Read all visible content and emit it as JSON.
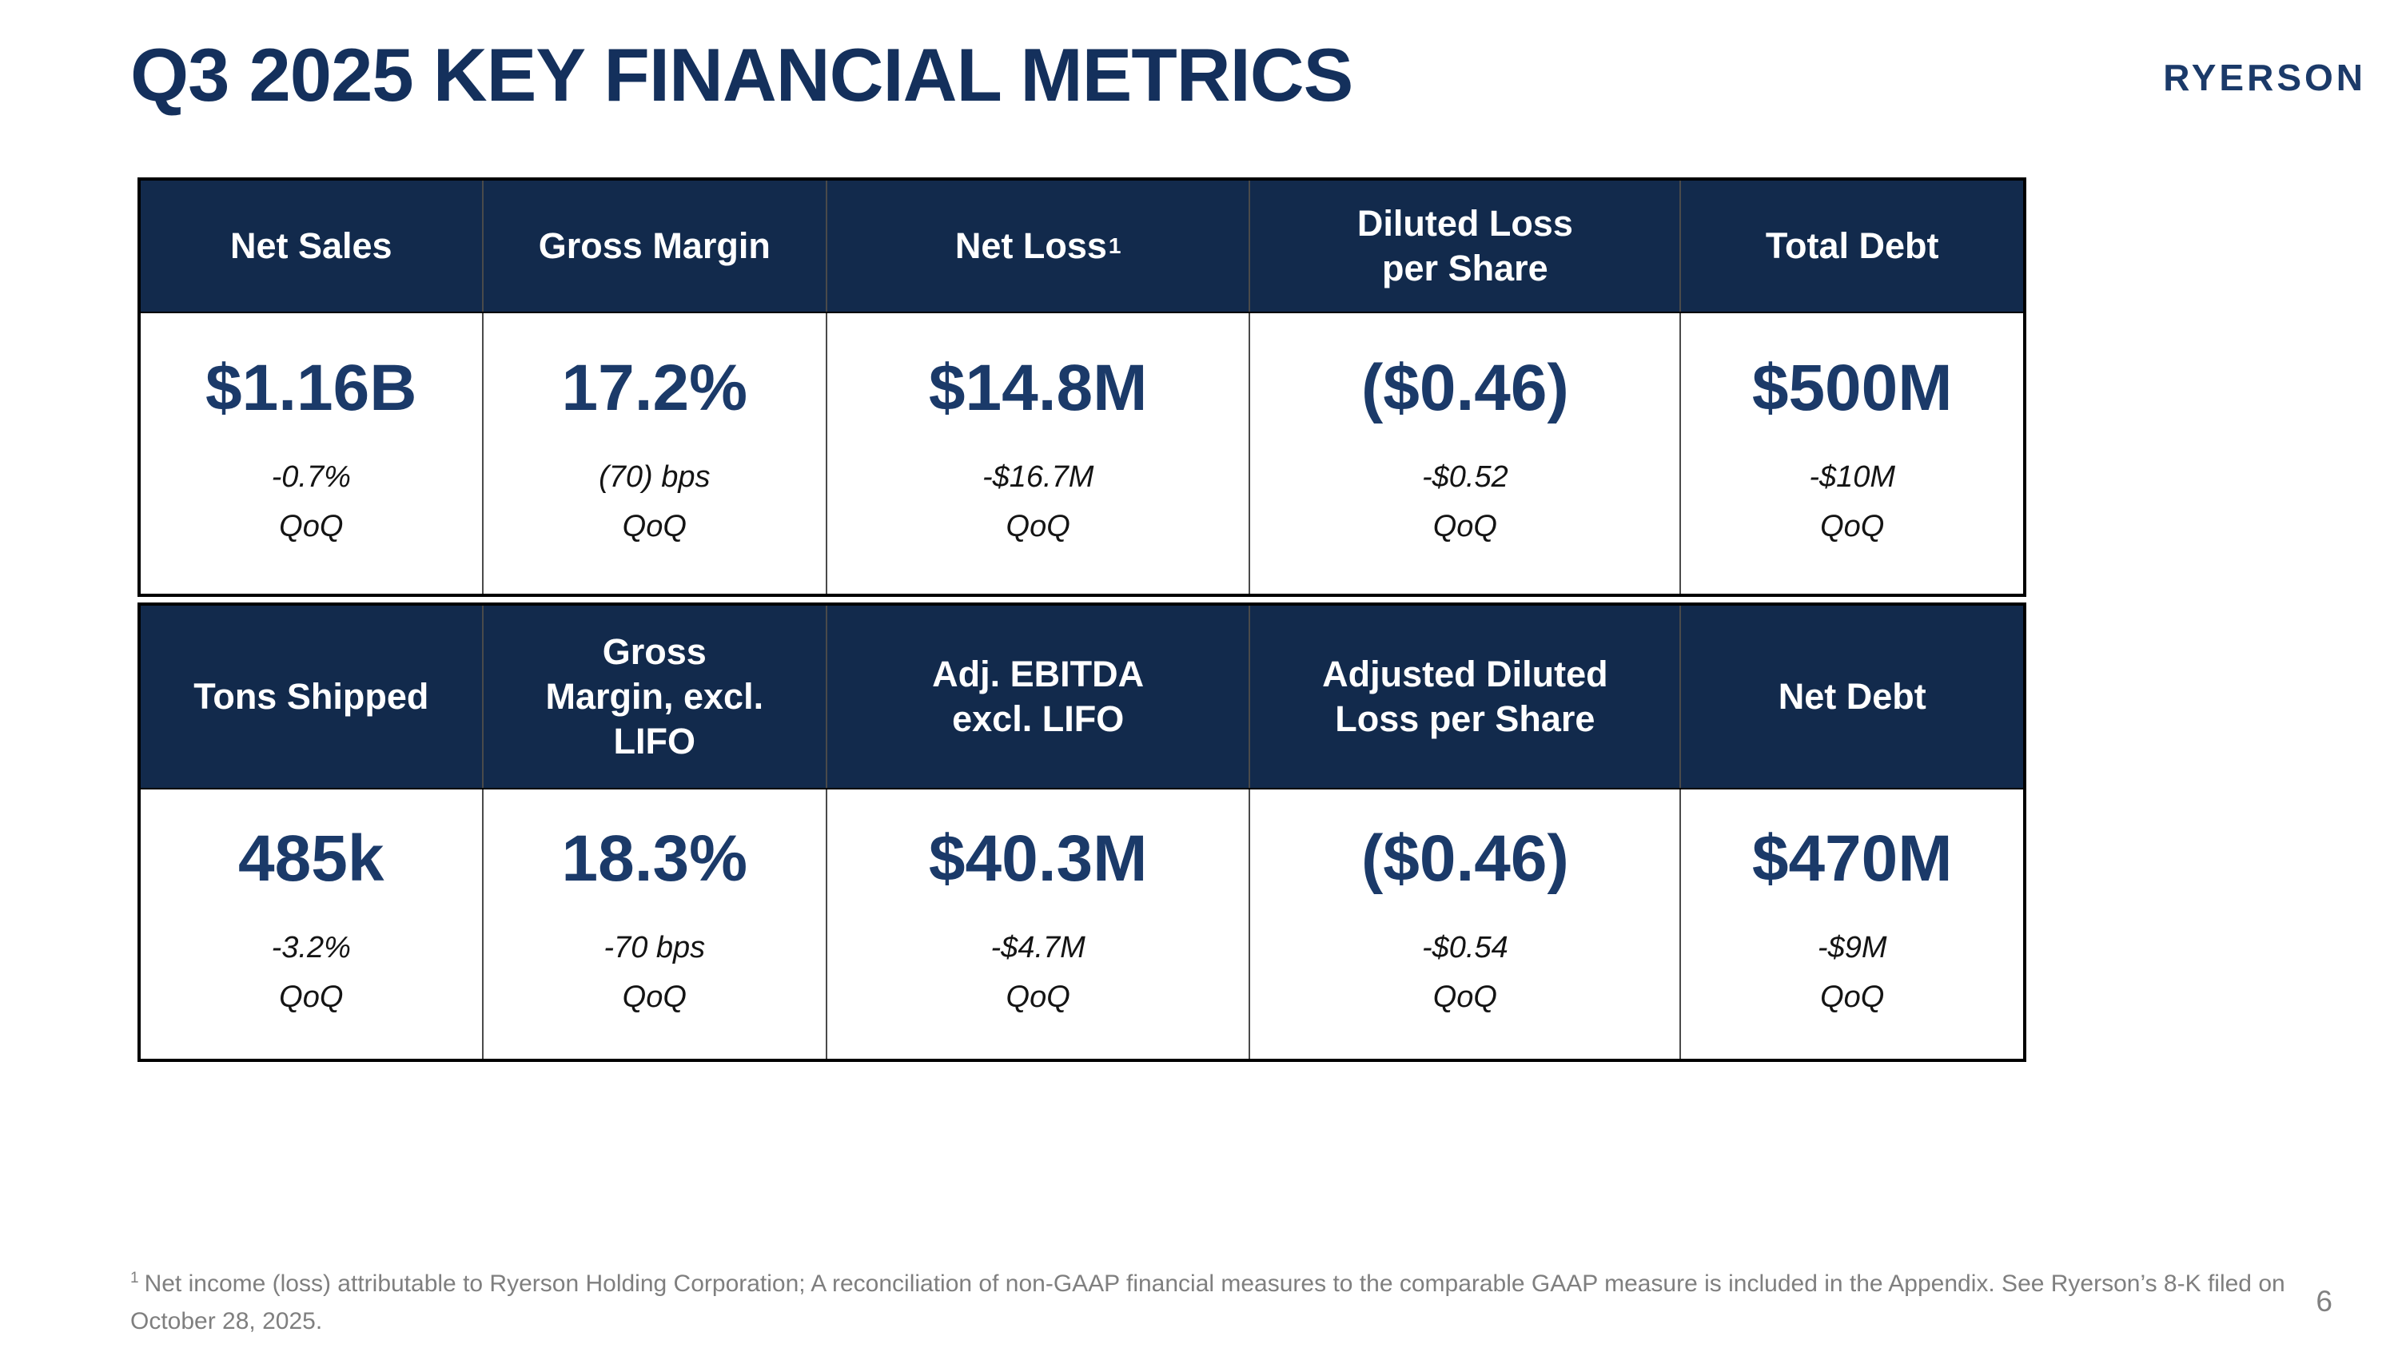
{
  "page": {
    "title": "Q3 2025 KEY FINANCIAL METRICS",
    "logo": "RYERSON",
    "page_number": "6"
  },
  "colors": {
    "header_navy": "#122a4c",
    "value_navy": "#1b3a69",
    "title_navy": "#14305c",
    "footnote_gray": "#7f7f7f",
    "border_black": "#000000"
  },
  "tables": [
    {
      "columns": [
        {
          "header": "Net Sales",
          "value": "$1.16B",
          "change": "-0.7%",
          "period": "QoQ"
        },
        {
          "header": "Gross Margin",
          "value": "17.2%",
          "change": "(70) bps",
          "period": "QoQ"
        },
        {
          "header": "Net Loss",
          "header_sup": "1",
          "value": "$14.8M",
          "change": "-$16.7M",
          "period": "QoQ"
        },
        {
          "header": "Diluted Loss\nper Share",
          "value": "($0.46)",
          "change": "-$0.52",
          "period": "QoQ"
        },
        {
          "header": "Total Debt",
          "value": "$500M",
          "change": "-$10M",
          "period": "QoQ"
        }
      ]
    },
    {
      "columns": [
        {
          "header": "Tons Shipped",
          "value": "485k",
          "change": "-3.2%",
          "period": "QoQ"
        },
        {
          "header": "Gross\nMargin, excl.\nLIFO",
          "value": "18.3%",
          "change": "-70 bps",
          "period": "QoQ"
        },
        {
          "header": "Adj. EBITDA\nexcl. LIFO",
          "value": "$40.3M",
          "change": "-$4.7M",
          "period": "QoQ"
        },
        {
          "header": "Adjusted Diluted\nLoss per Share",
          "value": "($0.46)",
          "change": "-$0.54",
          "period": "QoQ"
        },
        {
          "header": "Net Debt",
          "value": "$470M",
          "change": "-$9M",
          "period": "QoQ"
        }
      ]
    }
  ],
  "footnote": {
    "sup": "1",
    "text": "Net income (loss) attributable to Ryerson Holding Corporation; A reconciliation of non-GAAP financial measures to the comparable GAAP measure is included in the Appendix. See Ryerson’s 8-K filed on October 28, 2025."
  }
}
